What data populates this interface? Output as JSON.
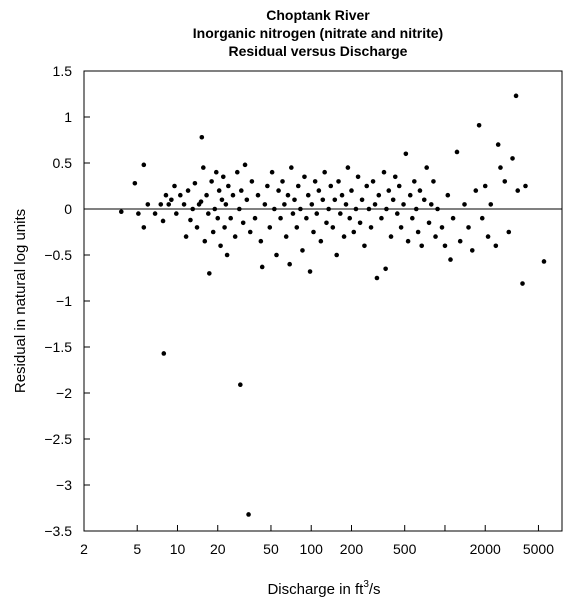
{
  "chart_data": {
    "type": "scatter",
    "title": [
      "Choptank River",
      "Inorganic nitrogen (nitrate and nitrite)",
      "Residual versus Discharge"
    ],
    "xlabel": "Discharge in ft",
    "xlabel_sup": "3",
    "xlabel_tail": "/s",
    "ylabel": "Residual in natural log units",
    "x_scale": "log",
    "xlim": [
      2,
      7500
    ],
    "ylim": [
      -3.5,
      1.5
    ],
    "x_ticks": [
      2,
      5,
      10,
      20,
      50,
      100,
      200,
      500,
      1000,
      2000,
      5000
    ],
    "x_tick_labels": [
      "2",
      "5",
      "10",
      "20",
      "50",
      "100",
      "200",
      "500",
      "",
      "2000",
      "5000"
    ],
    "y_ticks": [
      1.5,
      1,
      0.5,
      0,
      -0.5,
      -1,
      -1.5,
      -2,
      -2.5,
      -3,
      -3.5
    ],
    "y_tick_labels": [
      "1.5",
      "1",
      "0.5",
      "0",
      "−0.5",
      "−1",
      "−1.5",
      "−2",
      "−2.5",
      "−3",
      "−3.5"
    ],
    "reference_line_y": 0,
    "grid": false,
    "series": [
      {
        "points": [
          [
            3.8,
            -0.03
          ],
          [
            4.8,
            0.28
          ],
          [
            5.1,
            -0.05
          ],
          [
            5.6,
            0.48
          ],
          [
            5.6,
            -0.2
          ],
          [
            6.0,
            0.05
          ],
          [
            6.8,
            -0.05
          ],
          [
            7.5,
            0.05
          ],
          [
            7.8,
            -0.13
          ],
          [
            7.9,
            -1.57
          ],
          [
            8.2,
            0.15
          ],
          [
            8.6,
            0.05
          ],
          [
            9.0,
            0.1
          ],
          [
            9.5,
            0.25
          ],
          [
            9.8,
            -0.05
          ],
          [
            10.5,
            0.15
          ],
          [
            11.2,
            0.05
          ],
          [
            11.6,
            -0.3
          ],
          [
            12.0,
            0.2
          ],
          [
            12.5,
            -0.12
          ],
          [
            13.0,
            0.0
          ],
          [
            13.5,
            0.28
          ],
          [
            14.0,
            -0.2
          ],
          [
            14.5,
            0.05
          ],
          [
            15.0,
            0.08
          ],
          [
            15.2,
            0.78
          ],
          [
            15.6,
            0.45
          ],
          [
            16.0,
            -0.35
          ],
          [
            16.5,
            0.15
          ],
          [
            17.0,
            -0.05
          ],
          [
            17.3,
            -0.7
          ],
          [
            18.0,
            0.3
          ],
          [
            18.5,
            -0.25
          ],
          [
            19.0,
            0.0
          ],
          [
            19.5,
            0.4
          ],
          [
            20.0,
            -0.1
          ],
          [
            20.5,
            0.2
          ],
          [
            21.0,
            -0.4
          ],
          [
            21.5,
            0.1
          ],
          [
            22.0,
            0.35
          ],
          [
            22.5,
            -0.2
          ],
          [
            23.0,
            0.05
          ],
          [
            23.5,
            -0.5
          ],
          [
            24.0,
            0.25
          ],
          [
            25.0,
            -0.1
          ],
          [
            26.0,
            0.15
          ],
          [
            27.0,
            -0.3
          ],
          [
            28.0,
            0.4
          ],
          [
            29.0,
            0.0
          ],
          [
            29.5,
            -1.91
          ],
          [
            30.0,
            0.2
          ],
          [
            31.0,
            -0.15
          ],
          [
            32.0,
            0.48
          ],
          [
            33.0,
            0.1
          ],
          [
            34.0,
            -3.32
          ],
          [
            35.0,
            -0.25
          ],
          [
            36.0,
            0.3
          ],
          [
            38.0,
            -0.1
          ],
          [
            40.0,
            0.15
          ],
          [
            42.0,
            -0.35
          ],
          [
            43.0,
            -0.63
          ],
          [
            45.0,
            0.05
          ],
          [
            47.0,
            0.25
          ],
          [
            49.0,
            -0.2
          ],
          [
            51.0,
            0.4
          ],
          [
            53.0,
            0.0
          ],
          [
            55.0,
            -0.5
          ],
          [
            57.0,
            0.2
          ],
          [
            59.0,
            -0.1
          ],
          [
            61.0,
            0.3
          ],
          [
            63.0,
            0.05
          ],
          [
            65.0,
            -0.3
          ],
          [
            67.0,
            0.15
          ],
          [
            69.0,
            -0.6
          ],
          [
            71.0,
            0.45
          ],
          [
            73.0,
            -0.05
          ],
          [
            75.0,
            0.1
          ],
          [
            78.0,
            -0.2
          ],
          [
            80.0,
            0.25
          ],
          [
            83.0,
            0.0
          ],
          [
            86.0,
            -0.45
          ],
          [
            89.0,
            0.35
          ],
          [
            92.0,
            -0.1
          ],
          [
            95.0,
            0.15
          ],
          [
            98.0,
            -0.68
          ],
          [
            101.0,
            0.05
          ],
          [
            104.0,
            -0.25
          ],
          [
            107.0,
            0.3
          ],
          [
            110.0,
            -0.05
          ],
          [
            114.0,
            0.2
          ],
          [
            118.0,
            -0.35
          ],
          [
            122.0,
            0.1
          ],
          [
            126.0,
            0.4
          ],
          [
            130.0,
            -0.15
          ],
          [
            135.0,
            0.0
          ],
          [
            140.0,
            0.25
          ],
          [
            145.0,
            -0.2
          ],
          [
            150.0,
            0.1
          ],
          [
            155.0,
            -0.5
          ],
          [
            160.0,
            0.3
          ],
          [
            165.0,
            -0.05
          ],
          [
            170.0,
            0.15
          ],
          [
            176.0,
            -0.3
          ],
          [
            182.0,
            0.05
          ],
          [
            188.0,
            0.45
          ],
          [
            194.0,
            -0.1
          ],
          [
            200.0,
            0.2
          ],
          [
            208.0,
            -0.25
          ],
          [
            216.0,
            0.0
          ],
          [
            224.0,
            0.35
          ],
          [
            232.0,
            -0.15
          ],
          [
            240.0,
            0.1
          ],
          [
            250.0,
            -0.4
          ],
          [
            260.0,
            0.25
          ],
          [
            270.0,
            0.0
          ],
          [
            280.0,
            -0.2
          ],
          [
            290.0,
            0.3
          ],
          [
            300.0,
            0.05
          ],
          [
            310.0,
            -0.75
          ],
          [
            320.0,
            0.15
          ],
          [
            335.0,
            -0.1
          ],
          [
            350.0,
            0.4
          ],
          [
            360.0,
            -0.65
          ],
          [
            365.0,
            0.0
          ],
          [
            380.0,
            0.2
          ],
          [
            395.0,
            -0.3
          ],
          [
            410.0,
            0.1
          ],
          [
            425.0,
            0.35
          ],
          [
            440.0,
            -0.05
          ],
          [
            455.0,
            0.25
          ],
          [
            470.0,
            -0.2
          ],
          [
            490.0,
            0.05
          ],
          [
            510.0,
            0.6
          ],
          [
            530.0,
            -0.35
          ],
          [
            550.0,
            0.15
          ],
          [
            570.0,
            -0.1
          ],
          [
            590.0,
            0.3
          ],
          [
            610.0,
            0.0
          ],
          [
            630.0,
            -0.25
          ],
          [
            650.0,
            0.2
          ],
          [
            670.0,
            -0.4
          ],
          [
            700.0,
            0.1
          ],
          [
            730.0,
            0.45
          ],
          [
            760.0,
            -0.15
          ],
          [
            790.0,
            0.05
          ],
          [
            820.0,
            0.3
          ],
          [
            850.0,
            -0.3
          ],
          [
            880.0,
            0.0
          ],
          [
            950.0,
            -0.2
          ],
          [
            1000.0,
            -0.4
          ],
          [
            1050.0,
            0.15
          ],
          [
            1100.0,
            -0.55
          ],
          [
            1150.0,
            -0.1
          ],
          [
            1230.0,
            0.62
          ],
          [
            1300.0,
            -0.35
          ],
          [
            1400.0,
            0.05
          ],
          [
            1500.0,
            -0.2
          ],
          [
            1600.0,
            -0.45
          ],
          [
            1700.0,
            0.2
          ],
          [
            1800.0,
            0.91
          ],
          [
            1900.0,
            -0.1
          ],
          [
            2000.0,
            0.25
          ],
          [
            2100.0,
            -0.3
          ],
          [
            2200.0,
            0.05
          ],
          [
            2400.0,
            -0.4
          ],
          [
            2500.0,
            0.7
          ],
          [
            2600.0,
            0.45
          ],
          [
            2800.0,
            0.3
          ],
          [
            3000.0,
            -0.25
          ],
          [
            3200.0,
            0.55
          ],
          [
            3400.0,
            1.23
          ],
          [
            3500.0,
            0.2
          ],
          [
            3800.0,
            -0.81
          ],
          [
            4000.0,
            0.25
          ],
          [
            5500.0,
            -0.57
          ]
        ]
      }
    ]
  }
}
